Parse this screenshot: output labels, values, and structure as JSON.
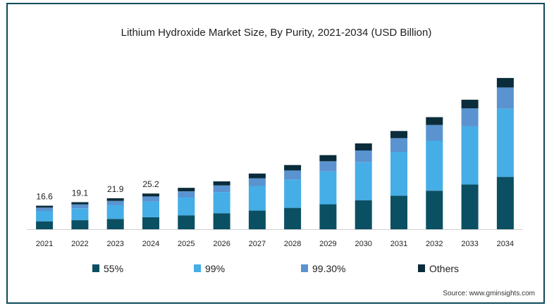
{
  "chart_data": {
    "type": "bar",
    "stacked": true,
    "title": "Lithium Hydroxide Market Size, By Purity, 2021-2034 (USD Billion)",
    "xlabel": "",
    "ylabel": "",
    "categories": [
      "2021",
      "2022",
      "2023",
      "2024",
      "2025",
      "2026",
      "2027",
      "2028",
      "2029",
      "2030",
      "2031",
      "2032",
      "2033",
      "2034"
    ],
    "ylim": [
      0,
      129
    ],
    "series": [
      {
        "name": "55%",
        "color": "#0b4f63",
        "values": [
          5.6,
          6.4,
          7.3,
          8.5,
          9.8,
          11.3,
          13.2,
          15.1,
          17.6,
          20.5,
          23.7,
          27.2,
          31.5,
          36.9
        ]
      },
      {
        "name": "99%",
        "color": "#45aee6",
        "values": [
          7.3,
          8.3,
          9.6,
          11.0,
          12.8,
          14.9,
          17.3,
          20.1,
          23.2,
          26.7,
          30.9,
          35.3,
          41.0,
          48.0
        ]
      },
      {
        "name": "99.30%",
        "color": "#5a93d0",
        "values": [
          2.3,
          2.8,
          3.1,
          3.6,
          4.1,
          4.7,
          5.5,
          6.3,
          7.2,
          8.4,
          9.7,
          11.1,
          12.8,
          15.1
        ]
      },
      {
        "name": "Others",
        "color": "#0b2c3a",
        "values": [
          1.4,
          1.6,
          1.9,
          2.1,
          2.5,
          2.9,
          3.3,
          3.8,
          4.3,
          5.0,
          5.0,
          5.5,
          6.1,
          6.7
        ]
      }
    ],
    "data_labels": [
      "16.6",
      "19.1",
      "21.9",
      "25.2"
    ],
    "legend_position": "bottom",
    "grid": false
  },
  "source": "Source: www.gminsights.com"
}
